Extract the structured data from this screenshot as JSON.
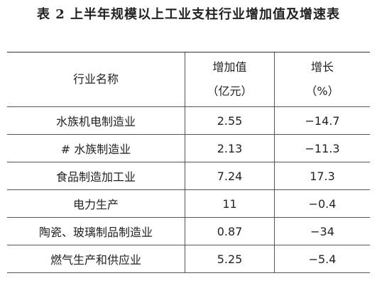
{
  "header": {
    "title": "表 2  上半年规模以上工业支柱行业增加值及增速表"
  },
  "table": {
    "columns": [
      "行业名称",
      [
        "增加值",
        "（亿元）"
      ],
      [
        "增长",
        "（%）"
      ]
    ],
    "rows": [
      [
        "水族机电制造业",
        "2.55",
        "−14.7"
      ],
      [
        "# 水族制造业",
        "2.13",
        "−11.3"
      ],
      [
        "食品制造加工业",
        "7.24",
        "17.3"
      ],
      [
        "电力生产",
        "11",
        "−0.4"
      ],
      [
        "陶瓷、玻璃制品制造业",
        "0.87",
        "−34"
      ],
      [
        "燃气生产和供应业",
        "5.25",
        "−5.4"
      ]
    ]
  }
}
